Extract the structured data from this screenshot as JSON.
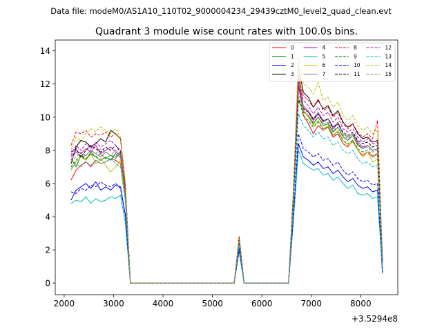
{
  "header": {
    "suptitle": "Data file: modeM0/AS1A10_110T02_9000004234_29439cztM0_level2_quad_clean.evt"
  },
  "chart_data": {
    "type": "line",
    "title": "Quadrant 3 module wise count rates with 100.0s bins.",
    "xlabel": "",
    "ylabel": "",
    "offset_text": "+3.5294e8",
    "xlim": [
      1820,
      8750
    ],
    "ylim": [
      -0.7,
      14.65
    ],
    "xticks": [
      2000,
      3000,
      4000,
      5000,
      6000,
      7000,
      8000
    ],
    "yticks": [
      0,
      2,
      4,
      6,
      8,
      10,
      12,
      14
    ],
    "grid": false,
    "legend_position": "top-right",
    "legend_columns": 4,
    "x": [
      2140,
      2240,
      2340,
      2440,
      2540,
      2640,
      2740,
      2840,
      2940,
      3040,
      3140,
      3240,
      3340,
      3440,
      3540,
      3640,
      3740,
      3840,
      3940,
      4040,
      4140,
      4240,
      4340,
      4440,
      4540,
      4640,
      4740,
      4840,
      4940,
      5040,
      5140,
      5240,
      5340,
      5440,
      5540,
      5640,
      5740,
      5840,
      5940,
      6040,
      6140,
      6240,
      6340,
      6440,
      6540,
      6640,
      6740,
      6840,
      6940,
      7040,
      7140,
      7240,
      7340,
      7440,
      7540,
      7640,
      7740,
      7840,
      7940,
      8040,
      8140,
      8240,
      8340,
      8440
    ],
    "series": [
      {
        "name": "0",
        "color": "#ff0000",
        "dash": "solid",
        "values": [
          6.2,
          6.8,
          7.1,
          7.3,
          7.0,
          7.4,
          7.2,
          7.3,
          7.5,
          7.4,
          7.2,
          5.0,
          0,
          0,
          0,
          0,
          0,
          0,
          0,
          0,
          0,
          0,
          0,
          0,
          0,
          0,
          0,
          0,
          0,
          0,
          0,
          0,
          0,
          0,
          2.6,
          0,
          0,
          0,
          0,
          0,
          0,
          0,
          0,
          0,
          0,
          5.0,
          12.5,
          10.1,
          9.6,
          9.0,
          9.5,
          9.2,
          9.4,
          8.8,
          9.0,
          8.4,
          8.2,
          8.6,
          8.0,
          7.7,
          7.9,
          7.6,
          7.8,
          1.2
        ]
      },
      {
        "name": "1",
        "color": "#008000",
        "dash": "solid",
        "values": [
          7.5,
          7.0,
          7.7,
          7.4,
          7.9,
          7.6,
          7.4,
          7.6,
          7.4,
          7.8,
          7.6,
          5.2,
          0,
          0,
          0,
          0,
          0,
          0,
          0,
          0,
          0,
          0,
          0,
          0,
          0,
          0,
          0,
          0,
          0,
          0,
          0,
          0,
          0,
          0,
          2.5,
          0,
          0,
          0,
          0,
          0,
          0,
          0,
          0,
          0,
          0,
          5.2,
          12.0,
          10.3,
          10.1,
          9.6,
          10.0,
          9.5,
          9.6,
          9.1,
          9.4,
          8.8,
          8.6,
          8.9,
          8.3,
          8.1,
          8.3,
          8.0,
          8.1,
          1.3
        ]
      },
      {
        "name": "2",
        "color": "#0000ff",
        "dash": "solid",
        "values": [
          5.0,
          5.6,
          5.8,
          6.0,
          5.7,
          6.1,
          5.6,
          5.8,
          5.6,
          5.9,
          5.8,
          4.1,
          0,
          0,
          0,
          0,
          0,
          0,
          0,
          0,
          0,
          0,
          0,
          0,
          0,
          0,
          0,
          0,
          0,
          0,
          0,
          0,
          0,
          0,
          2.1,
          0,
          0,
          0,
          0,
          0,
          0,
          0,
          0,
          0,
          0,
          4.0,
          8.4,
          7.6,
          7.4,
          7.1,
          7.3,
          6.9,
          7.0,
          6.6,
          6.8,
          6.4,
          6.1,
          6.3,
          5.9,
          5.7,
          5.8,
          5.5,
          5.6,
          0.6
        ]
      },
      {
        "name": "3",
        "color": "#000000",
        "dash": "solid",
        "values": [
          7.2,
          8.2,
          8.6,
          8.5,
          8.2,
          8.4,
          8.7,
          8.5,
          9.2,
          9.0,
          8.7,
          5.8,
          0,
          0,
          0,
          0,
          0,
          0,
          0,
          0,
          0,
          0,
          0,
          0,
          0,
          0,
          0,
          0,
          0,
          0,
          0,
          0,
          0,
          0,
          2.8,
          0,
          0,
          0,
          0,
          0,
          0,
          0,
          0,
          0,
          0,
          5.6,
          13.0,
          11.5,
          11.2,
          10.6,
          11.0,
          10.5,
          10.7,
          10.1,
          10.4,
          9.7,
          9.4,
          9.6,
          9.0,
          8.7,
          8.8,
          8.5,
          8.6,
          1.4
        ]
      },
      {
        "name": "4",
        "color": "#bf00bf",
        "dash": "solid",
        "values": [
          7.6,
          8.0,
          7.8,
          8.1,
          7.9,
          8.3,
          7.8,
          8.0,
          8.2,
          7.9,
          7.7,
          5.2,
          0,
          0,
          0,
          0,
          0,
          0,
          0,
          0,
          0,
          0,
          0,
          0,
          0,
          0,
          0,
          0,
          0,
          0,
          0,
          0,
          0,
          0,
          2.5,
          0,
          0,
          0,
          0,
          0,
          0,
          0,
          0,
          0,
          0,
          5.2,
          11.8,
          10.6,
          10.3,
          9.8,
          10.2,
          9.7,
          9.9,
          9.3,
          9.6,
          9.0,
          8.8,
          9.0,
          8.5,
          8.2,
          8.3,
          8.0,
          8.1,
          1.2
        ]
      },
      {
        "name": "5",
        "color": "#00bfbf",
        "dash": "solid",
        "values": [
          4.8,
          5.0,
          4.9,
          5.2,
          4.8,
          5.1,
          4.9,
          5.0,
          5.2,
          5.1,
          5.3,
          3.6,
          0,
          0,
          0,
          0,
          0,
          0,
          0,
          0,
          0,
          0,
          0,
          0,
          0,
          0,
          0,
          0,
          0,
          0,
          0,
          0,
          0,
          0,
          1.9,
          0,
          0,
          0,
          0,
          0,
          0,
          0,
          0,
          0,
          0,
          3.8,
          8.0,
          7.2,
          7.0,
          6.8,
          6.9,
          6.5,
          6.6,
          6.2,
          6.4,
          6.0,
          5.7,
          5.9,
          5.4,
          5.3,
          5.4,
          5.1,
          5.2,
          0.7
        ]
      },
      {
        "name": "6",
        "color": "#bfbf00",
        "dash": "solid",
        "values": [
          6.8,
          7.3,
          7.6,
          7.4,
          7.8,
          7.2,
          7.5,
          7.1,
          6.7,
          7.0,
          7.4,
          5.0,
          0,
          0,
          0,
          0,
          0,
          0,
          0,
          0,
          0,
          0,
          0,
          0,
          0,
          0,
          0,
          0,
          0,
          0,
          0,
          0,
          0,
          0,
          2.4,
          0,
          0,
          0,
          0,
          0,
          0,
          0,
          0,
          0,
          0,
          5.0,
          13.3,
          10.4,
          10.0,
          9.5,
          9.8,
          9.3,
          9.5,
          8.9,
          9.2,
          8.6,
          8.3,
          8.5,
          8.0,
          7.6,
          7.9,
          7.3,
          7.5,
          1.1
        ]
      },
      {
        "name": "7",
        "color": "#808080",
        "dash": "solid",
        "values": [
          7.4,
          7.9,
          7.6,
          7.7,
          8.0,
          7.8,
          7.6,
          7.9,
          7.7,
          7.5,
          7.8,
          5.3,
          0,
          0,
          0,
          0,
          0,
          0,
          0,
          0,
          0,
          0,
          0,
          0,
          0,
          0,
          0,
          0,
          0,
          0,
          0,
          0,
          0,
          0,
          2.5,
          0,
          0,
          0,
          0,
          0,
          0,
          0,
          0,
          0,
          0,
          5.1,
          12.3,
          10.7,
          10.4,
          9.9,
          10.3,
          9.8,
          9.9,
          9.4,
          9.7,
          9.0,
          8.8,
          9.0,
          8.4,
          8.1,
          8.3,
          8.0,
          8.1,
          1.2
        ]
      },
      {
        "name": "8",
        "color": "#ff0000",
        "dash": "dashed",
        "values": [
          8.3,
          9.1,
          9.0,
          9.2,
          8.8,
          9.0,
          8.9,
          9.1,
          8.8,
          9.0,
          8.7,
          5.9,
          0,
          0,
          0,
          0,
          0,
          0,
          0,
          0,
          0,
          0,
          0,
          0,
          0,
          0,
          0,
          0,
          0,
          0,
          0,
          0,
          0,
          0,
          2.8,
          0,
          0,
          0,
          0,
          0,
          0,
          0,
          0,
          0,
          0,
          5.7,
          12.4,
          11.3,
          11.0,
          10.6,
          11.1,
          10.4,
          10.6,
          10.0,
          10.3,
          9.6,
          9.3,
          9.6,
          9.1,
          8.8,
          9.0,
          8.7,
          9.8,
          1.4
        ]
      },
      {
        "name": "9",
        "color": "#008000",
        "dash": "dashed",
        "values": [
          7.0,
          7.4,
          7.7,
          7.5,
          7.8,
          7.6,
          7.8,
          7.5,
          7.7,
          7.6,
          7.9,
          5.3,
          0,
          0,
          0,
          0,
          0,
          0,
          0,
          0,
          0,
          0,
          0,
          0,
          0,
          0,
          0,
          0,
          0,
          0,
          0,
          0,
          0,
          0,
          2.5,
          0,
          0,
          0,
          0,
          0,
          0,
          0,
          0,
          0,
          0,
          5.2,
          11.2,
          10.1,
          9.8,
          9.4,
          9.7,
          9.3,
          9.4,
          8.9,
          9.1,
          8.6,
          8.4,
          8.6,
          8.1,
          7.9,
          8.0,
          7.7,
          7.8,
          1.2
        ]
      },
      {
        "name": "10",
        "color": "#0000ff",
        "dash": "dashed",
        "values": [
          5.5,
          5.4,
          5.7,
          5.6,
          5.9,
          5.8,
          6.1,
          5.9,
          5.8,
          6.0,
          5.7,
          4.0,
          0,
          0,
          0,
          0,
          0,
          0,
          0,
          0,
          0,
          0,
          0,
          0,
          0,
          0,
          0,
          0,
          0,
          0,
          0,
          0,
          0,
          0,
          2.0,
          0,
          0,
          0,
          0,
          0,
          0,
          0,
          0,
          0,
          0,
          4.1,
          9.0,
          8.1,
          7.9,
          7.6,
          7.8,
          7.4,
          7.5,
          7.1,
          7.3,
          6.8,
          6.5,
          6.7,
          6.3,
          6.1,
          6.2,
          5.9,
          6.0,
          0.7
        ]
      },
      {
        "name": "11",
        "color": "#000000",
        "dash": "dashed",
        "values": [
          7.9,
          8.1,
          7.6,
          8.0,
          8.3,
          8.1,
          7.9,
          8.2,
          8.0,
          8.3,
          7.9,
          5.4,
          0,
          0,
          0,
          0,
          0,
          0,
          0,
          0,
          0,
          0,
          0,
          0,
          0,
          0,
          0,
          0,
          0,
          0,
          0,
          0,
          0,
          0,
          2.6,
          0,
          0,
          0,
          0,
          0,
          0,
          0,
          0,
          0,
          0,
          5.3,
          11.0,
          10.5,
          10.3,
          9.9,
          10.2,
          9.8,
          9.9,
          9.4,
          9.6,
          9.1,
          8.9,
          9.1,
          8.6,
          8.4,
          8.5,
          8.2,
          8.3,
          1.3
        ]
      },
      {
        "name": "12",
        "color": "#bf00bf",
        "dash": "dashed",
        "values": [
          7.7,
          8.3,
          8.0,
          8.4,
          8.1,
          8.5,
          8.2,
          8.4,
          8.6,
          8.3,
          8.0,
          5.5,
          0,
          0,
          0,
          0,
          0,
          0,
          0,
          0,
          0,
          0,
          0,
          0,
          0,
          0,
          0,
          0,
          0,
          0,
          0,
          0,
          0,
          0,
          2.6,
          0,
          0,
          0,
          0,
          0,
          0,
          0,
          0,
          0,
          0,
          5.4,
          12.2,
          11.0,
          10.7,
          10.2,
          10.6,
          10.1,
          10.3,
          9.7,
          10.0,
          9.3,
          9.1,
          9.3,
          8.8,
          8.5,
          8.7,
          8.4,
          8.5,
          1.3
        ]
      },
      {
        "name": "13",
        "color": "#00bfbf",
        "dash": "dashed",
        "values": [
          6.9,
          7.2,
          7.0,
          7.3,
          7.1,
          7.4,
          7.2,
          7.3,
          7.5,
          7.2,
          7.0,
          4.9,
          0,
          0,
          0,
          0,
          0,
          0,
          0,
          0,
          0,
          0,
          0,
          0,
          0,
          0,
          0,
          0,
          0,
          0,
          0,
          0,
          0,
          0,
          2.3,
          0,
          0,
          0,
          0,
          0,
          0,
          0,
          0,
          0,
          0,
          4.8,
          10.2,
          9.5,
          9.2,
          8.8,
          9.1,
          8.7,
          8.8,
          8.3,
          8.5,
          8.0,
          7.8,
          8.0,
          7.5,
          7.2,
          7.3,
          7.0,
          7.1,
          1.0
        ]
      },
      {
        "name": "14",
        "color": "#bfbf00",
        "dash": "dashed",
        "values": [
          8.0,
          8.8,
          8.5,
          9.0,
          9.3,
          9.1,
          9.4,
          9.2,
          9.0,
          9.3,
          8.8,
          6.0,
          0,
          0,
          0,
          0,
          0,
          0,
          0,
          0,
          0,
          0,
          0,
          0,
          0,
          0,
          0,
          0,
          0,
          0,
          0,
          0,
          0,
          0,
          2.7,
          0,
          0,
          0,
          0,
          0,
          0,
          0,
          0,
          0,
          0,
          5.8,
          13.8,
          12.0,
          11.8,
          11.4,
          12.1,
          11.0,
          11.2,
          10.6,
          10.9,
          10.1,
          9.8,
          10.1,
          9.5,
          9.2,
          9.4,
          9.0,
          9.2,
          1.5
        ]
      },
      {
        "name": "15",
        "color": "#808080",
        "dash": "dashed",
        "values": [
          7.3,
          7.6,
          7.9,
          7.7,
          8.0,
          7.8,
          8.1,
          7.9,
          7.7,
          8.0,
          7.8,
          5.3,
          0,
          0,
          0,
          0,
          0,
          0,
          0,
          0,
          0,
          0,
          0,
          0,
          0,
          0,
          0,
          0,
          0,
          0,
          0,
          0,
          0,
          0,
          2.5,
          0,
          0,
          0,
          0,
          0,
          0,
          0,
          0,
          0,
          0,
          5.2,
          11.5,
          10.4,
          10.1,
          9.7,
          10.0,
          9.6,
          9.7,
          9.2,
          9.4,
          8.9,
          8.7,
          8.9,
          8.4,
          8.1,
          8.2,
          7.9,
          8.0,
          1.2
        ]
      }
    ]
  }
}
